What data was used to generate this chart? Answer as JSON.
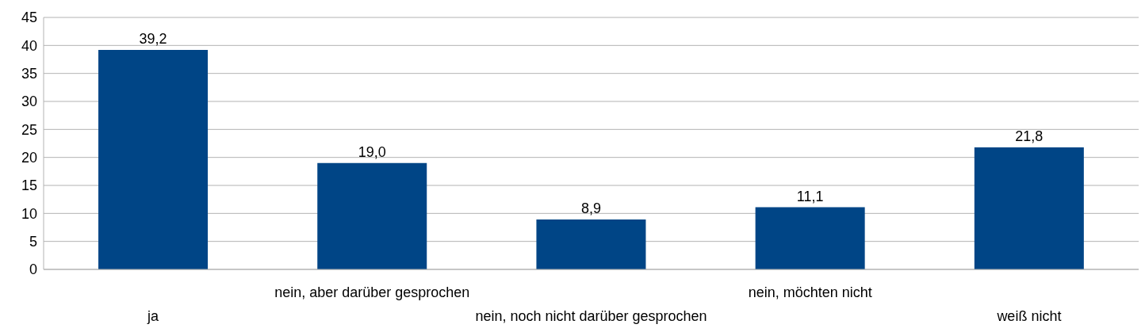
{
  "chart_data": {
    "type": "bar",
    "categories": [
      "ja",
      "nein, aber darüber gesprochen",
      "nein, noch nicht darüber gesprochen",
      "nein, möchten nicht",
      "weiß nicht"
    ],
    "values": [
      39.2,
      19.0,
      8.9,
      11.1,
      21.8
    ],
    "value_labels": [
      "39,2",
      "19,0",
      "8,9",
      "11,1",
      "21,8"
    ],
    "color": "#004586",
    "ylim": [
      0,
      45
    ],
    "yticks": [
      0,
      5,
      10,
      15,
      20,
      25,
      30,
      35,
      40,
      45
    ],
    "grid": "y",
    "legend": false
  }
}
